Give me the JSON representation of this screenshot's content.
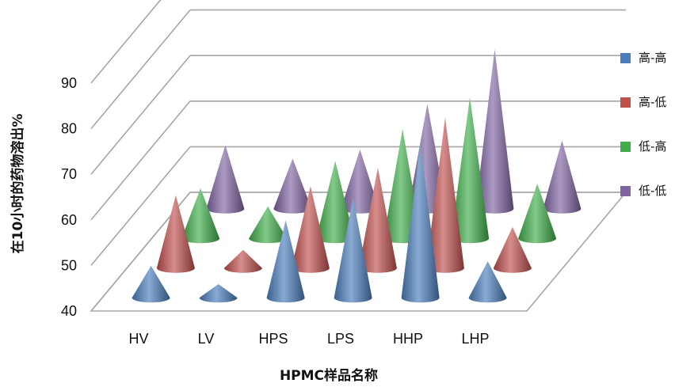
{
  "chart_data": {
    "type": "bar",
    "style": "3d-cone",
    "title": "",
    "xlabel": "HPMC样品名称",
    "ylabel": "在10小时的药物溶出%",
    "ylim": [
      40,
      90
    ],
    "yticks": [
      40,
      50,
      60,
      70,
      80,
      90
    ],
    "categories": [
      "HV",
      "LV",
      "HPS",
      "LPS",
      "HHP",
      "LHP"
    ],
    "grid": true,
    "legend_position": "right",
    "series": [
      {
        "name": "高-高",
        "color": "#4a7ebb",
        "values": [
          47,
          43,
          57,
          62,
          74,
          48
        ]
      },
      {
        "name": "高-低",
        "color": "#c0504d",
        "values": [
          56,
          44,
          58,
          62,
          73,
          49
        ]
      },
      {
        "name": "低-高",
        "color": "#3fae49",
        "values": [
          51,
          47,
          57,
          64,
          71,
          52
        ]
      },
      {
        "name": "低-低",
        "color": "#8064a2",
        "values": [
          54,
          51,
          53,
          63,
          75,
          55
        ]
      }
    ]
  }
}
